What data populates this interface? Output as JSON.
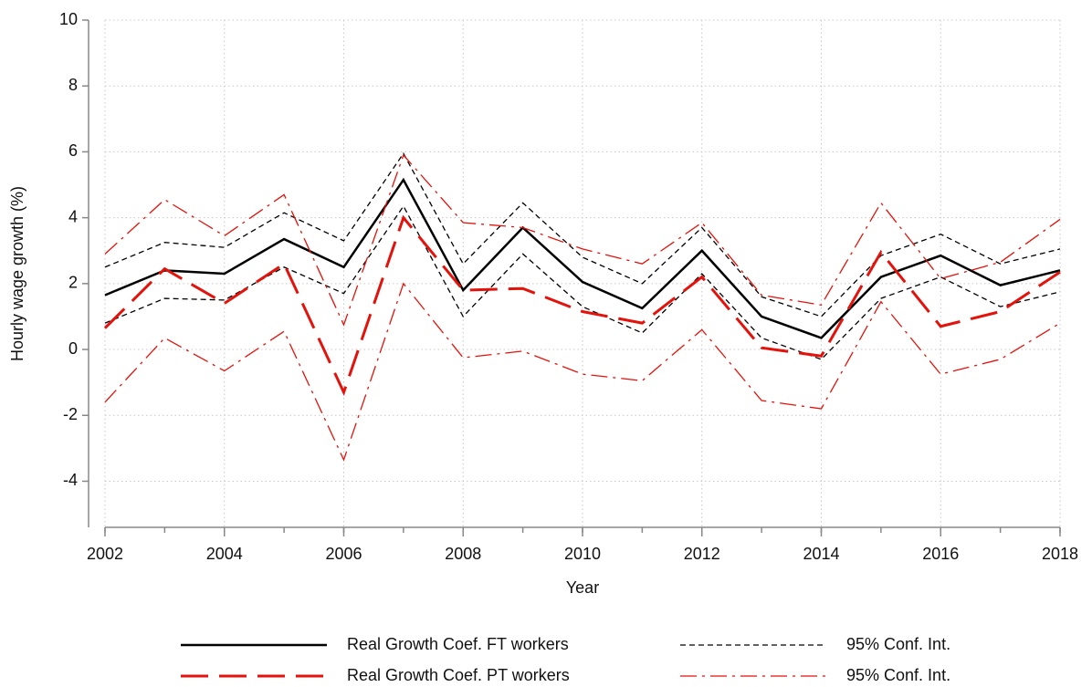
{
  "chart_data": {
    "type": "line",
    "xlabel": "Year",
    "ylabel": "Hourly wage growth (%)",
    "x": [
      2002,
      2003,
      2004,
      2005,
      2006,
      2007,
      2008,
      2009,
      2010,
      2011,
      2012,
      2013,
      2014,
      2015,
      2016,
      2017,
      2018
    ],
    "xlim": [
      2002,
      2018
    ],
    "xticks": [
      2002,
      2004,
      2006,
      2008,
      2010,
      2012,
      2014,
      2016,
      2018
    ],
    "ylim": [
      -5.4,
      10
    ],
    "yticks": [
      -4,
      -2,
      0,
      2,
      4,
      6,
      8,
      10
    ],
    "grid": true,
    "series": [
      {
        "name": "Real Growth Coef. FT workers",
        "color": "#000000",
        "style": "solid",
        "values": [
          1.65,
          2.4,
          2.3,
          3.35,
          2.5,
          5.15,
          1.8,
          3.7,
          2.05,
          1.25,
          3.0,
          1.0,
          0.35,
          2.2,
          2.85,
          1.95,
          2.4
        ]
      },
      {
        "name": "95% Conf. Int.",
        "color": "#000000",
        "style": "dash",
        "upper": [
          2.5,
          3.25,
          3.1,
          4.15,
          3.3,
          5.95,
          2.6,
          4.45,
          2.8,
          2.0,
          3.7,
          1.6,
          1.0,
          2.85,
          3.5,
          2.6,
          3.05
        ],
        "lower": [
          0.8,
          1.55,
          1.5,
          2.5,
          1.7,
          4.35,
          1.0,
          2.9,
          1.3,
          0.5,
          2.3,
          0.35,
          -0.3,
          1.55,
          2.2,
          1.3,
          1.75
        ]
      },
      {
        "name": "Real Growth Coef. PT workers",
        "color": "#e3120b",
        "style": "longdash",
        "values": [
          0.65,
          2.45,
          1.4,
          2.6,
          -1.3,
          4.0,
          1.8,
          1.85,
          1.15,
          0.8,
          2.2,
          0.05,
          -0.2,
          2.95,
          0.7,
          1.15,
          2.35
        ]
      },
      {
        "name": "95% Conf. Int.",
        "color": "#e3120b",
        "style": "dashdot",
        "upper": [
          2.9,
          4.55,
          3.45,
          4.7,
          0.75,
          5.9,
          3.85,
          3.7,
          3.05,
          2.6,
          3.85,
          1.65,
          1.35,
          4.45,
          2.15,
          2.65,
          3.95
        ],
        "lower": [
          -1.6,
          0.35,
          -0.65,
          0.55,
          -3.35,
          2.0,
          -0.25,
          -0.05,
          -0.75,
          -0.95,
          0.6,
          -1.55,
          -1.8,
          1.45,
          -0.75,
          -0.3,
          0.8
        ]
      }
    ]
  }
}
